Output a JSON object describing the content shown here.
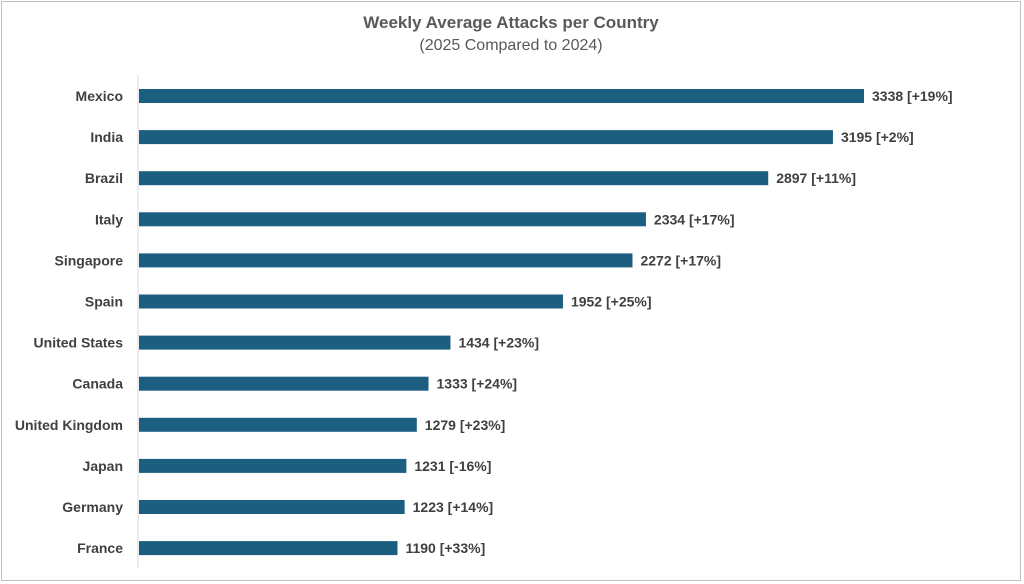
{
  "chart_data": {
    "type": "bar",
    "orientation": "horizontal",
    "title": "Weekly Average Attacks per Country",
    "subtitle": "(2025 Compared to 2024)",
    "xlabel": "",
    "ylabel": "",
    "xlim": [
      0,
      3338
    ],
    "grid": false,
    "legend": "none",
    "bar_color": "#1b5e7f",
    "categories": [
      "Mexico",
      "India",
      "Brazil",
      "Italy",
      "Singapore",
      "Spain",
      "United States",
      "Canada",
      "United Kingdom",
      "Japan",
      "Germany",
      "France"
    ],
    "values": [
      3338,
      3195,
      2897,
      2334,
      2272,
      1952,
      1434,
      1333,
      1279,
      1231,
      1223,
      1190
    ],
    "data_labels": [
      "3338 [+19%]",
      "3195 [+2%]",
      "2897 [+11%]",
      "2334 [+17%]",
      "2272 [+17%]",
      "1952 [+25%]",
      "1434 [+23%]",
      "1333 [+24%]",
      "1279 [+23%]",
      "1231 [-16%]",
      "1223 [+14%]",
      "1190 [+33%]"
    ]
  }
}
